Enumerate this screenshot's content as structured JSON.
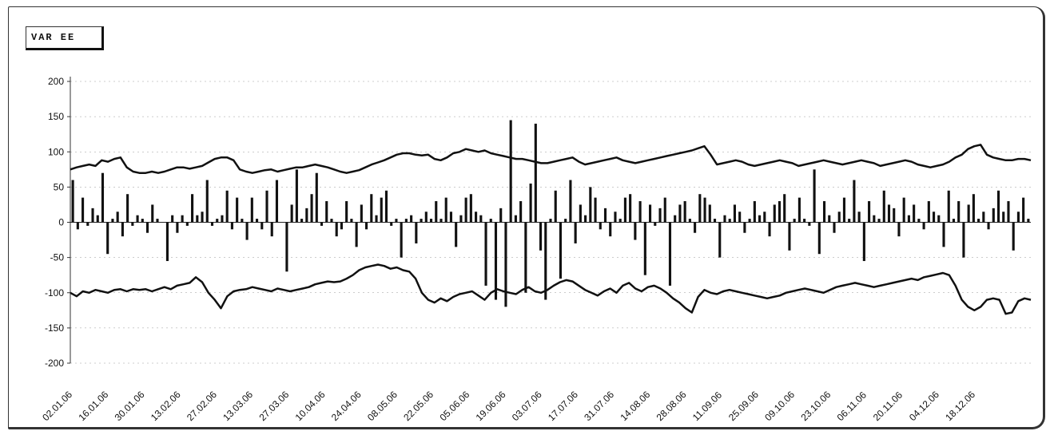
{
  "chart_data": {
    "type": "bar",
    "title": "VAR EE",
    "xlabel": "",
    "ylabel": "",
    "ylim": [
      -200,
      200
    ],
    "yticks": [
      200,
      150,
      100,
      50,
      0,
      -50,
      -100,
      -150,
      -200
    ],
    "grid": true,
    "x_tick_labels": [
      "02.01.06",
      "16.01.06",
      "30.01.06",
      "13.02.06",
      "27.02.06",
      "13.03.06",
      "27.03.06",
      "10.04.06",
      "24.04.06",
      "08.05.06",
      "22.05.06",
      "05.06.06",
      "19.06.06",
      "03.07.06",
      "17.07.06",
      "31.07.06",
      "14.08.06",
      "28.08.06",
      "11.09.06",
      "25.09.06",
      "09.10.06",
      "23.10.06",
      "06.11.06",
      "20.11.06",
      "04.12.06",
      "18.12.06"
    ],
    "series": [
      {
        "type": "bar",
        "values": [
          60,
          -10,
          35,
          -5,
          20,
          10,
          70,
          -45,
          5,
          15,
          -20,
          40,
          -5,
          10,
          5,
          -15,
          25,
          5,
          0,
          -55,
          10,
          -15,
          10,
          -5,
          40,
          10,
          15,
          60,
          -5,
          5,
          10,
          45,
          -10,
          35,
          5,
          -25,
          35,
          5,
          -10,
          45,
          -20,
          60,
          0,
          -70,
          25,
          75,
          5,
          20,
          40,
          70,
          -5,
          30,
          5,
          -20,
          -10,
          30,
          5,
          -35,
          25,
          -10,
          40,
          10,
          35,
          45,
          -5,
          5,
          -50,
          5,
          10,
          -30,
          5,
          15,
          5,
          30,
          5,
          35,
          15,
          -35,
          10,
          35,
          40,
          15,
          10,
          -90,
          5,
          -110,
          20,
          -120,
          145,
          10,
          30,
          -100,
          55,
          140,
          -40,
          -110,
          5,
          45,
          -80,
          5,
          60,
          -30,
          25,
          10,
          50,
          35,
          -10,
          20,
          -20,
          15,
          5,
          35,
          40,
          -25,
          30,
          -75,
          25,
          -5,
          20,
          35,
          -90,
          10,
          25,
          30,
          5,
          -15,
          40,
          35,
          25,
          5,
          -50,
          10,
          5,
          25,
          15,
          -15,
          5,
          30,
          10,
          15,
          -20,
          25,
          30,
          40,
          -40,
          5,
          35,
          5,
          -5,
          75,
          -45,
          30,
          10,
          -15,
          15,
          35,
          5,
          60,
          15,
          -55,
          30,
          10,
          5,
          45,
          25,
          20,
          -20,
          35,
          10,
          25,
          5,
          -10,
          30,
          15,
          10,
          -35,
          45,
          5,
          30,
          -50,
          25,
          40,
          5,
          15,
          -10,
          20,
          45,
          15,
          30,
          -40,
          15,
          35,
          5
        ]
      },
      {
        "type": "line",
        "values": [
          75,
          78,
          80,
          82,
          80,
          88,
          86,
          90,
          92,
          78,
          72,
          70,
          70,
          72,
          70,
          72,
          75,
          78,
          78,
          76,
          78,
          80,
          85,
          90,
          92,
          92,
          88,
          75,
          72,
          70,
          72,
          74,
          75,
          72,
          74,
          76,
          78,
          78,
          80,
          82,
          80,
          78,
          75,
          72,
          70,
          72,
          74,
          78,
          82,
          85,
          88,
          92,
          96,
          98,
          98,
          96,
          95,
          96,
          90,
          88,
          92,
          98,
          100,
          104,
          102,
          100,
          102,
          98,
          96,
          94,
          92,
          90,
          90,
          88,
          86,
          84,
          84,
          86,
          88,
          90,
          92,
          86,
          82,
          84,
          86,
          88,
          90,
          92,
          88,
          86,
          84,
          86,
          88,
          90,
          92,
          94,
          96,
          98,
          100,
          102,
          105,
          108,
          96,
          82,
          84,
          86,
          88,
          86,
          82,
          80,
          82,
          84,
          86,
          88,
          86,
          84,
          80,
          82,
          84,
          86,
          88,
          86,
          84,
          82,
          84,
          86,
          88,
          86,
          84,
          80,
          82,
          84,
          86,
          88,
          86,
          82,
          80,
          78,
          80,
          82,
          86,
          92,
          96,
          104,
          108,
          110,
          96,
          92,
          90,
          88,
          88,
          90,
          90,
          88
        ]
      },
      {
        "type": "line",
        "values": [
          -100,
          -105,
          -98,
          -100,
          -96,
          -98,
          -100,
          -96,
          -95,
          -98,
          -95,
          -96,
          -95,
          -98,
          -95,
          -92,
          -95,
          -90,
          -88,
          -86,
          -78,
          -85,
          -100,
          -110,
          -122,
          -105,
          -98,
          -96,
          -95,
          -92,
          -94,
          -96,
          -98,
          -94,
          -96,
          -98,
          -96,
          -94,
          -92,
          -88,
          -86,
          -84,
          -85,
          -84,
          -80,
          -75,
          -68,
          -64,
          -62,
          -60,
          -62,
          -66,
          -64,
          -68,
          -70,
          -80,
          -100,
          -110,
          -114,
          -108,
          -112,
          -106,
          -102,
          -100,
          -98,
          -104,
          -110,
          -100,
          -95,
          -98,
          -100,
          -102,
          -96,
          -92,
          -98,
          -100,
          -96,
          -90,
          -85,
          -82,
          -84,
          -90,
          -96,
          -100,
          -104,
          -98,
          -94,
          -100,
          -90,
          -86,
          -94,
          -98,
          -92,
          -90,
          -94,
          -100,
          -108,
          -114,
          -122,
          -128,
          -106,
          -96,
          -100,
          -102,
          -98,
          -96,
          -98,
          -100,
          -102,
          -104,
          -106,
          -108,
          -106,
          -104,
          -100,
          -98,
          -96,
          -94,
          -96,
          -98,
          -100,
          -96,
          -92,
          -90,
          -88,
          -86,
          -88,
          -90,
          -92,
          -90,
          -88,
          -86,
          -84,
          -82,
          -80,
          -82,
          -78,
          -76,
          -74,
          -72,
          -75,
          -90,
          -110,
          -120,
          -125,
          -120,
          -110,
          -108,
          -110,
          -130,
          -128,
          -112,
          -108,
          -110
        ]
      }
    ]
  }
}
